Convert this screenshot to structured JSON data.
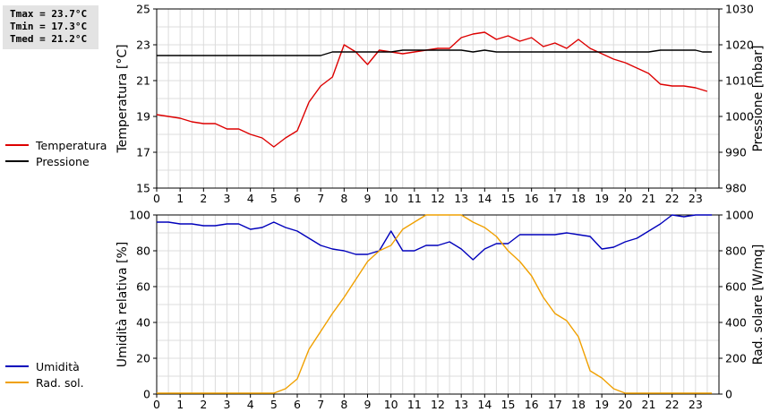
{
  "stats": {
    "tmax": "Tmax = 23.7°C",
    "tmin": "Tmin = 17.3°C",
    "tmed": "Tmed = 21.2°C"
  },
  "legend_top": [
    {
      "label": "Temperatura",
      "color": "#dd0000"
    },
    {
      "label": "Pressione",
      "color": "#000000"
    }
  ],
  "legend_bottom": [
    {
      "label": "Umidità",
      "color": "#0000bb"
    },
    {
      "label": "Rad. sol.",
      "color": "#f0a000"
    }
  ],
  "chart_data": [
    {
      "type": "line",
      "xlim": [
        0,
        24
      ],
      "x_ticks": [
        "0",
        "1",
        "2",
        "3",
        "4",
        "5",
        "6",
        "7",
        "8",
        "9",
        "10",
        "11",
        "12",
        "13",
        "14",
        "15",
        "16",
        "17",
        "18",
        "19",
        "20",
        "21",
        "22",
        "23"
      ],
      "ylabel": "Temperatura [°C]",
      "ylim": [
        15,
        25
      ],
      "y_ticks": [
        "15",
        "17",
        "19",
        "21",
        "23",
        "25"
      ],
      "y2label": "Pressione [mbar]",
      "y2lim": [
        980,
        1030
      ],
      "y2_ticks": [
        "980",
        "990",
        "1000",
        "1010",
        "1020",
        "1030"
      ],
      "grid": true,
      "series": [
        {
          "name": "Temperatura",
          "axis": "left",
          "color": "#dd0000",
          "points": [
            [
              0,
              19.1
            ],
            [
              0.5,
              19.0
            ],
            [
              1,
              18.9
            ],
            [
              1.5,
              18.7
            ],
            [
              2,
              18.6
            ],
            [
              2.5,
              18.6
            ],
            [
              3,
              18.3
            ],
            [
              3.5,
              18.3
            ],
            [
              4,
              18.0
            ],
            [
              4.5,
              17.8
            ],
            [
              5,
              17.3
            ],
            [
              5.5,
              17.8
            ],
            [
              6,
              18.2
            ],
            [
              6.5,
              19.8
            ],
            [
              7,
              20.7
            ],
            [
              7.5,
              21.2
            ],
            [
              8,
              23.0
            ],
            [
              8.5,
              22.6
            ],
            [
              9,
              21.9
            ],
            [
              9.5,
              22.7
            ],
            [
              10,
              22.6
            ],
            [
              10.5,
              22.5
            ],
            [
              11,
              22.6
            ],
            [
              11.5,
              22.7
            ],
            [
              12,
              22.8
            ],
            [
              12.5,
              22.8
            ],
            [
              13,
              23.4
            ],
            [
              13.5,
              23.6
            ],
            [
              14,
              23.7
            ],
            [
              14.5,
              23.3
            ],
            [
              15,
              23.5
            ],
            [
              15.5,
              23.2
            ],
            [
              16,
              23.4
            ],
            [
              16.5,
              22.9
            ],
            [
              17,
              23.1
            ],
            [
              17.5,
              22.8
            ],
            [
              18,
              23.3
            ],
            [
              18.5,
              22.8
            ],
            [
              19,
              22.5
            ],
            [
              19.5,
              22.2
            ],
            [
              20,
              22.0
            ],
            [
              20.5,
              21.7
            ],
            [
              21,
              21.4
            ],
            [
              21.5,
              20.8
            ],
            [
              22,
              20.7
            ],
            [
              22.5,
              20.7
            ],
            [
              23,
              20.6
            ],
            [
              23.5,
              20.4
            ]
          ]
        },
        {
          "name": "Pressione",
          "axis": "right",
          "color": "#000000",
          "points": [
            [
              0,
              1017
            ],
            [
              7,
              1017
            ],
            [
              7.5,
              1018
            ],
            [
              10,
              1018
            ],
            [
              10.5,
              1018.5
            ],
            [
              13,
              1018.5
            ],
            [
              13.5,
              1018
            ],
            [
              14,
              1018.5
            ],
            [
              14.5,
              1018
            ],
            [
              21,
              1018
            ],
            [
              21.5,
              1018.5
            ],
            [
              23,
              1018.5
            ],
            [
              23.3,
              1018
            ],
            [
              23.7,
              1018
            ]
          ]
        }
      ]
    },
    {
      "type": "line",
      "xlim": [
        0,
        24
      ],
      "x_ticks": [
        "0",
        "1",
        "2",
        "3",
        "4",
        "5",
        "6",
        "7",
        "8",
        "9",
        "10",
        "11",
        "12",
        "13",
        "14",
        "15",
        "16",
        "17",
        "18",
        "19",
        "20",
        "21",
        "22",
        "23"
      ],
      "ylabel": "Umidità relativa [%]",
      "ylim": [
        0,
        100
      ],
      "y_ticks": [
        "0",
        "20",
        "40",
        "60",
        "80",
        "100"
      ],
      "y2label": "Rad. solare [W/mq]",
      "y2lim": [
        0,
        1000
      ],
      "y2_ticks": [
        "0",
        "200",
        "400",
        "600",
        "800",
        "1000"
      ],
      "grid": true,
      "series": [
        {
          "name": "Umidità",
          "axis": "left",
          "color": "#0000bb",
          "points": [
            [
              0,
              96
            ],
            [
              0.5,
              96
            ],
            [
              1,
              95
            ],
            [
              1.5,
              95
            ],
            [
              2,
              94
            ],
            [
              2.5,
              94
            ],
            [
              3,
              95
            ],
            [
              3.5,
              95
            ],
            [
              4,
              92
            ],
            [
              4.5,
              93
            ],
            [
              5,
              96
            ],
            [
              5.5,
              93
            ],
            [
              6,
              91
            ],
            [
              6.5,
              87
            ],
            [
              7,
              83
            ],
            [
              7.5,
              81
            ],
            [
              8,
              80
            ],
            [
              8.5,
              78
            ],
            [
              9,
              78
            ],
            [
              9.5,
              80
            ],
            [
              10,
              91
            ],
            [
              10.5,
              80
            ],
            [
              11,
              80
            ],
            [
              11.5,
              83
            ],
            [
              12,
              83
            ],
            [
              12.5,
              85
            ],
            [
              13,
              81
            ],
            [
              13.5,
              75
            ],
            [
              14,
              81
            ],
            [
              14.5,
              84
            ],
            [
              15,
              84
            ],
            [
              15.5,
              89
            ],
            [
              16,
              89
            ],
            [
              16.5,
              89
            ],
            [
              17,
              89
            ],
            [
              17.5,
              90
            ],
            [
              18,
              89
            ],
            [
              18.5,
              88
            ],
            [
              19,
              81
            ],
            [
              19.5,
              82
            ],
            [
              20,
              85
            ],
            [
              20.5,
              87
            ],
            [
              21,
              91
            ],
            [
              21.5,
              95
            ],
            [
              22,
              100
            ],
            [
              22.5,
              99
            ],
            [
              23,
              100
            ],
            [
              23.7,
              100
            ]
          ]
        },
        {
          "name": "Rad. sol.",
          "axis": "right",
          "color": "#f0a000",
          "points": [
            [
              0,
              5
            ],
            [
              5,
              5
            ],
            [
              5.5,
              30
            ],
            [
              6,
              85
            ],
            [
              6.5,
              250
            ],
            [
              7,
              350
            ],
            [
              7.5,
              450
            ],
            [
              8,
              540
            ],
            [
              8.5,
              640
            ],
            [
              9,
              740
            ],
            [
              9.5,
              800
            ],
            [
              10,
              830
            ],
            [
              10.5,
              920
            ],
            [
              11,
              960
            ],
            [
              11.5,
              1000
            ],
            [
              13,
              1000
            ],
            [
              13.5,
              960
            ],
            [
              14,
              930
            ],
            [
              14.5,
              880
            ],
            [
              15,
              800
            ],
            [
              15.5,
              740
            ],
            [
              16,
              660
            ],
            [
              16.5,
              540
            ],
            [
              17,
              450
            ],
            [
              17.5,
              410
            ],
            [
              18,
              320
            ],
            [
              18.5,
              130
            ],
            [
              19,
              90
            ],
            [
              19.5,
              30
            ],
            [
              20,
              5
            ],
            [
              23.7,
              5
            ]
          ]
        }
      ]
    }
  ]
}
